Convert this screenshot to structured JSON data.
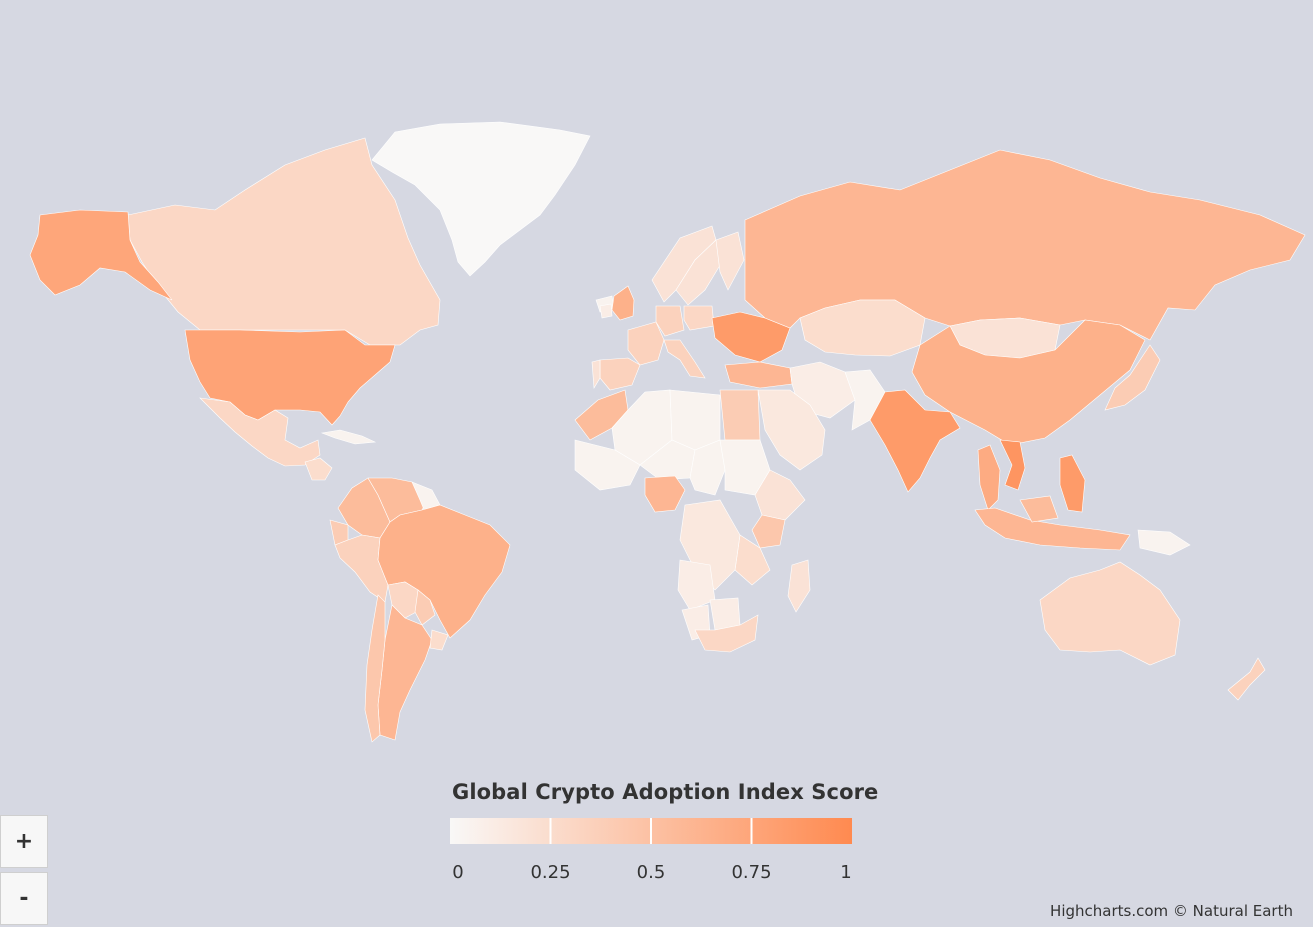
{
  "colors": {
    "background": "#d6d8e2",
    "min": "#f9f8f7",
    "max": "#ff8a50",
    "separator": "#ffffff"
  },
  "legend": {
    "title": "Global Crypto Adoption Index Score",
    "ticks": [
      "0",
      "0.25",
      "0.5",
      "0.75",
      "1"
    ],
    "range": [
      0,
      1
    ]
  },
  "zoom": {
    "in_label": "+",
    "out_label": "-"
  },
  "credits": "Highcharts.com © Natural Earth",
  "map_data": {
    "type": "choropleth",
    "countries": [
      {
        "name": "Greenland",
        "value": 0.0
      },
      {
        "name": "Canada",
        "value": 0.3
      },
      {
        "name": "Alaska (United States)",
        "value": 0.75
      },
      {
        "name": "United States",
        "value": 0.77
      },
      {
        "name": "Mexico",
        "value": 0.3
      },
      {
        "name": "Guatemala",
        "value": 0.25
      },
      {
        "name": "Cuba",
        "value": 0.05
      },
      {
        "name": "Colombia",
        "value": 0.55
      },
      {
        "name": "Venezuela",
        "value": 0.55
      },
      {
        "name": "Guyana",
        "value": 0.05
      },
      {
        "name": "Ecuador",
        "value": 0.4
      },
      {
        "name": "Peru",
        "value": 0.35
      },
      {
        "name": "Brazil",
        "value": 0.65
      },
      {
        "name": "Bolivia",
        "value": 0.3
      },
      {
        "name": "Paraguay",
        "value": 0.4
      },
      {
        "name": "Argentina",
        "value": 0.6
      },
      {
        "name": "Chile",
        "value": 0.45
      },
      {
        "name": "Uruguay",
        "value": 0.25
      },
      {
        "name": "Iceland",
        "value": 0.05
      },
      {
        "name": "United Kingdom",
        "value": 0.65
      },
      {
        "name": "Ireland",
        "value": 0.1
      },
      {
        "name": "Norway",
        "value": 0.2
      },
      {
        "name": "Sweden",
        "value": 0.2
      },
      {
        "name": "Finland",
        "value": 0.2
      },
      {
        "name": "France",
        "value": 0.35
      },
      {
        "name": "Spain",
        "value": 0.35
      },
      {
        "name": "Portugal",
        "value": 0.2
      },
      {
        "name": "Germany",
        "value": 0.35
      },
      {
        "name": "Poland",
        "value": 0.3
      },
      {
        "name": "Italy",
        "value": 0.35
      },
      {
        "name": "Ukraine",
        "value": 0.85
      },
      {
        "name": "Turkey",
        "value": 0.6
      },
      {
        "name": "Russia",
        "value": 0.6
      },
      {
        "name": "Kazakhstan",
        "value": 0.25
      },
      {
        "name": "Mongolia",
        "value": 0.2
      },
      {
        "name": "China",
        "value": 0.65
      },
      {
        "name": "Iran",
        "value": 0.1
      },
      {
        "name": "Pakistan",
        "value": 0.05
      },
      {
        "name": "India",
        "value": 0.85
      },
      {
        "name": "Saudi Arabia",
        "value": 0.15
      },
      {
        "name": "Egypt",
        "value": 0.4
      },
      {
        "name": "Morocco",
        "value": 0.55
      },
      {
        "name": "Algeria",
        "value": 0.05
      },
      {
        "name": "Libya",
        "value": 0.05
      },
      {
        "name": "Mali",
        "value": 0.05
      },
      {
        "name": "Niger",
        "value": 0.05
      },
      {
        "name": "Chad",
        "value": 0.05
      },
      {
        "name": "Sudan",
        "value": 0.05
      },
      {
        "name": "Ethiopia",
        "value": 0.2
      },
      {
        "name": "Nigeria",
        "value": 0.6
      },
      {
        "name": "Kenya",
        "value": 0.45
      },
      {
        "name": "Tanzania",
        "value": 0.25
      },
      {
        "name": "DR Congo",
        "value": 0.15
      },
      {
        "name": "Angola",
        "value": 0.1
      },
      {
        "name": "Namibia",
        "value": 0.1
      },
      {
        "name": "Botswana",
        "value": 0.1
      },
      {
        "name": "South Africa",
        "value": 0.3
      },
      {
        "name": "Madagascar",
        "value": 0.2
      },
      {
        "name": "Thailand",
        "value": 0.7
      },
      {
        "name": "Vietnam",
        "value": 0.9
      },
      {
        "name": "Philippines",
        "value": 0.85
      },
      {
        "name": "Indonesia",
        "value": 0.6
      },
      {
        "name": "Malaysia",
        "value": 0.55
      },
      {
        "name": "Japan",
        "value": 0.4
      },
      {
        "name": "Papua New Guinea",
        "value": 0.05
      },
      {
        "name": "Australia",
        "value": 0.3
      },
      {
        "name": "New Zealand",
        "value": 0.35
      }
    ]
  }
}
